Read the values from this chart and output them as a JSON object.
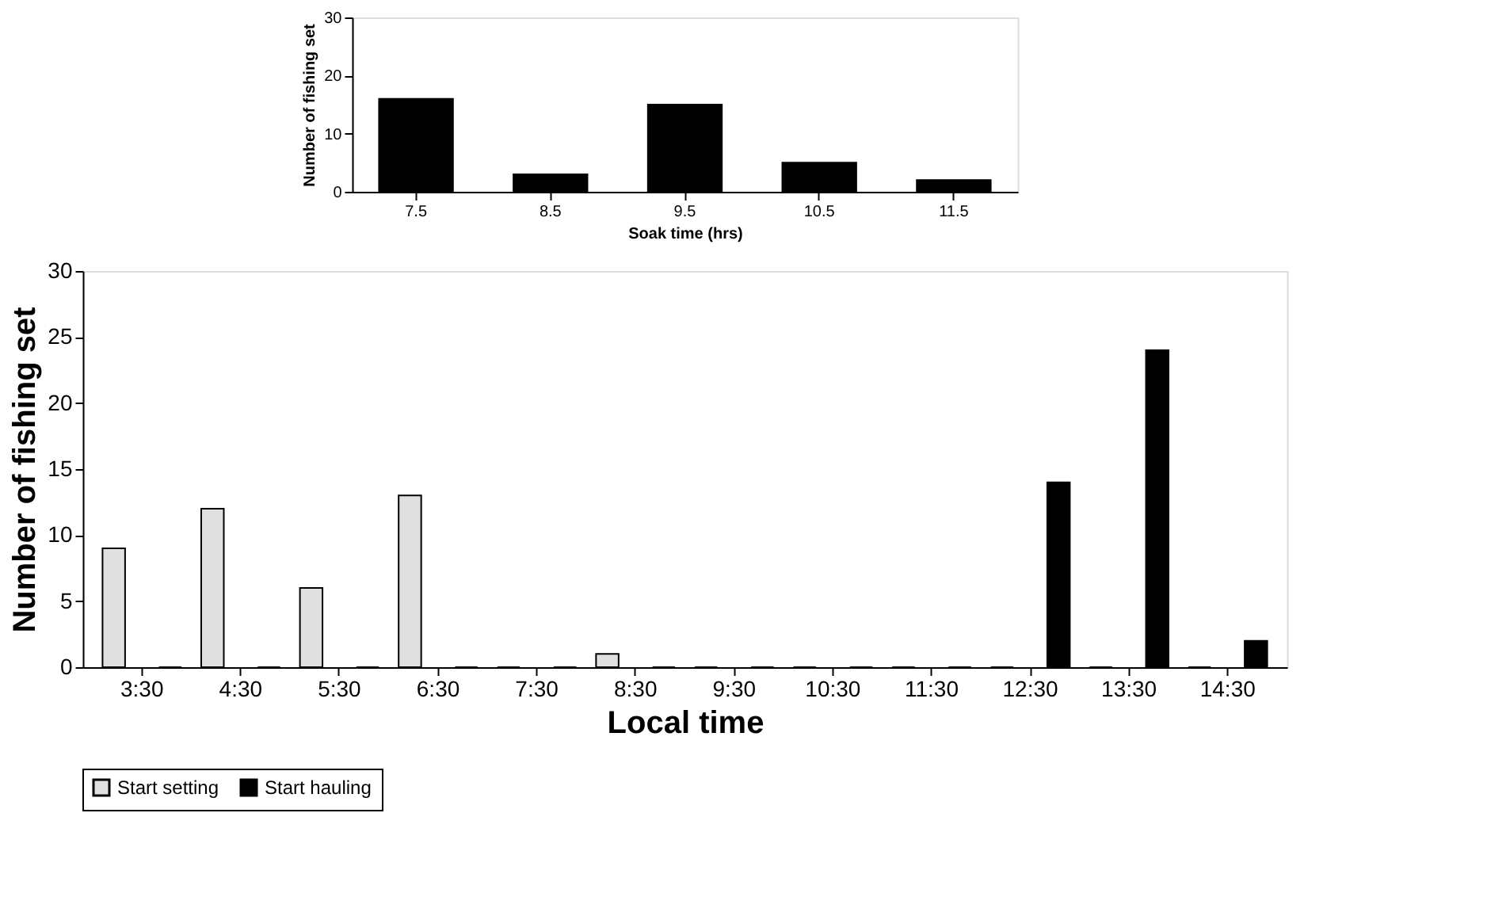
{
  "chart_data": [
    {
      "type": "bar",
      "xlabel": "Local time",
      "ylabel": "Number of fishing set",
      "categories": [
        "3:30",
        "4:30",
        "5:30",
        "6:30",
        "7:30",
        "8:30",
        "9:30",
        "10:30",
        "11:30",
        "12:30",
        "13:30",
        "14:30"
      ],
      "series": [
        {
          "name": "Start setting",
          "color": "#e0e0e0",
          "values": [
            9,
            12,
            6,
            13,
            0,
            1,
            0,
            0,
            0,
            0,
            0,
            0
          ]
        },
        {
          "name": "Start hauling",
          "color": "#000000",
          "values": [
            0,
            0,
            0,
            0,
            0,
            0,
            0,
            0,
            0,
            14,
            24,
            2
          ]
        }
      ],
      "ylim": [
        0,
        30
      ],
      "yticks": [
        0,
        5,
        10,
        15,
        20,
        25,
        30
      ],
      "grid": false,
      "legend": "bottom"
    },
    {
      "type": "bar",
      "xlabel": "Soak time (hrs)",
      "ylabel": "Number of fishing set",
      "categories": [
        "7.5",
        "8.5",
        "9.5",
        "10.5",
        "11.5"
      ],
      "values": [
        16,
        3,
        15,
        5,
        2
      ],
      "color": "#000000",
      "ylim": [
        0,
        30
      ],
      "yticks": [
        0,
        10,
        20,
        30
      ],
      "grid": false
    }
  ]
}
